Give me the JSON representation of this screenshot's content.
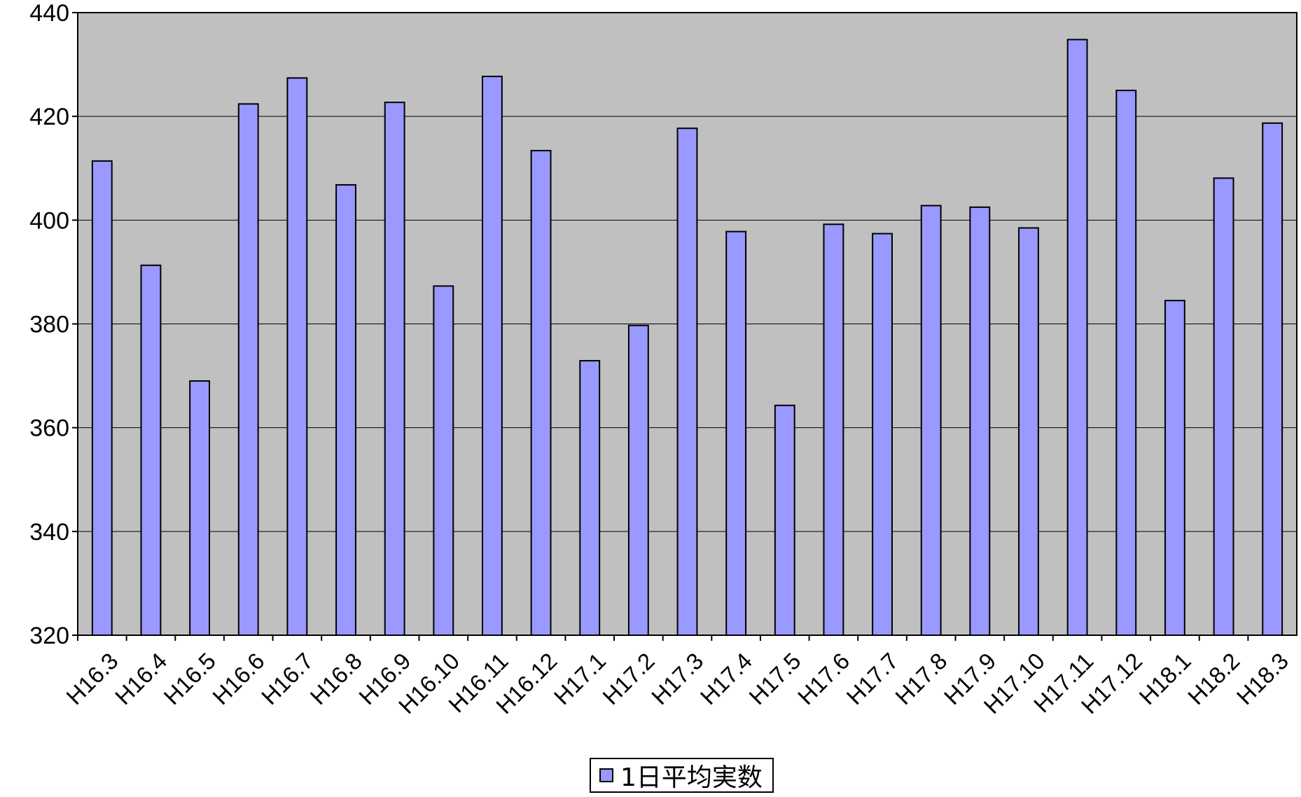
{
  "chart_data": {
    "type": "bar",
    "categories": [
      "H16.3",
      "H16.4",
      "H16.5",
      "H16.6",
      "H16.7",
      "H16.8",
      "H16.9",
      "H16.10",
      "H16.11",
      "H16.12",
      "H17.1",
      "H17.2",
      "H17.3",
      "H17.4",
      "H17.5",
      "H17.6",
      "H17.7",
      "H17.8",
      "H17.9",
      "H17.10",
      "H17.11",
      "H17.12",
      "H18.1",
      "H18.2",
      "H18.3"
    ],
    "series": [
      {
        "name": "1日平均実数",
        "values": [
          411.4,
          391.3,
          369.0,
          422.4,
          427.4,
          406.8,
          422.7,
          387.3,
          427.7,
          413.4,
          372.9,
          379.7,
          417.7,
          397.8,
          364.3,
          399.2,
          397.4,
          402.8,
          402.5,
          398.5,
          434.8,
          425.0,
          384.5,
          408.1,
          418.7
        ]
      }
    ],
    "ylim": [
      320,
      440
    ],
    "yticks": [
      "320",
      "340",
      "360",
      "380",
      "400",
      "420",
      "440"
    ],
    "xlabel": "",
    "ylabel": "",
    "title": "",
    "grid": true,
    "legend_position": "bottom",
    "colors": {
      "bar_fill": "#9999ff",
      "bar_stroke": "#000000",
      "plot_background": "#c0c0c0",
      "gridline": "#000000"
    }
  }
}
